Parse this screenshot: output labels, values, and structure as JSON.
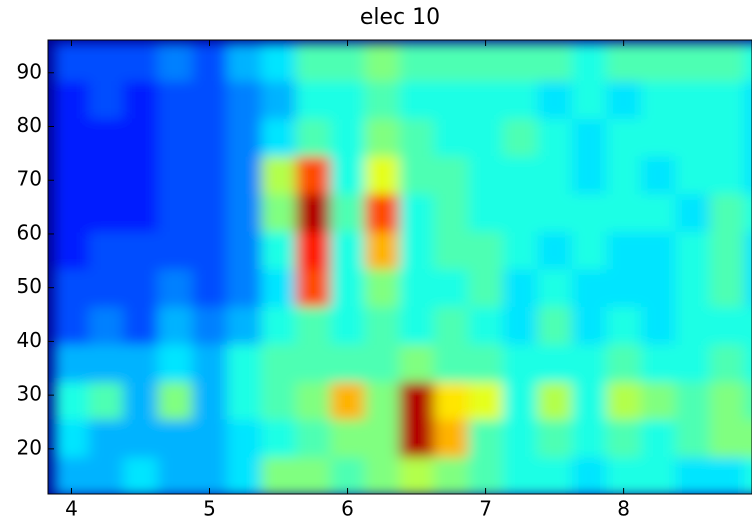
{
  "chart_data": {
    "type": "heatmap",
    "title": "elec 10",
    "x": [
      4.0,
      4.25,
      4.5,
      4.75,
      5.0,
      5.25,
      5.5,
      5.75,
      6.0,
      6.25,
      6.5,
      6.75,
      7.0,
      7.25,
      7.5,
      7.75,
      8.0,
      8.25,
      8.5,
      8.75,
      9.0
    ],
    "y": [
      15,
      22,
      29,
      36,
      43,
      50,
      57,
      64,
      71,
      78,
      85,
      92
    ],
    "values": [
      [
        0.3,
        0.3,
        0.35,
        0.3,
        0.3,
        0.35,
        0.5,
        0.5,
        0.45,
        0.5,
        0.55,
        0.5,
        0.45,
        0.4,
        0.4,
        0.35,
        0.4,
        0.4,
        0.35,
        0.35,
        0.4
      ],
      [
        0.35,
        0.3,
        0.3,
        0.3,
        0.3,
        0.35,
        0.4,
        0.45,
        0.5,
        0.5,
        0.95,
        0.7,
        0.45,
        0.4,
        0.45,
        0.4,
        0.45,
        0.4,
        0.45,
        0.5,
        0.5
      ],
      [
        0.4,
        0.45,
        0.3,
        0.5,
        0.3,
        0.4,
        0.45,
        0.5,
        0.7,
        0.5,
        0.95,
        0.65,
        0.6,
        0.4,
        0.55,
        0.4,
        0.55,
        0.5,
        0.45,
        0.5,
        0.45
      ],
      [
        0.3,
        0.3,
        0.3,
        0.35,
        0.3,
        0.4,
        0.45,
        0.45,
        0.45,
        0.45,
        0.5,
        0.45,
        0.45,
        0.4,
        0.4,
        0.4,
        0.45,
        0.4,
        0.4,
        0.45,
        0.4
      ],
      [
        0.2,
        0.25,
        0.2,
        0.3,
        0.25,
        0.3,
        0.4,
        0.45,
        0.4,
        0.45,
        0.4,
        0.45,
        0.4,
        0.35,
        0.45,
        0.35,
        0.4,
        0.35,
        0.4,
        0.4,
        0.4
      ],
      [
        0.2,
        0.2,
        0.2,
        0.25,
        0.2,
        0.25,
        0.35,
        0.8,
        0.4,
        0.5,
        0.4,
        0.4,
        0.45,
        0.35,
        0.4,
        0.35,
        0.35,
        0.35,
        0.4,
        0.45,
        0.35
      ],
      [
        0.15,
        0.2,
        0.2,
        0.2,
        0.2,
        0.25,
        0.4,
        0.85,
        0.4,
        0.7,
        0.4,
        0.45,
        0.45,
        0.4,
        0.35,
        0.4,
        0.35,
        0.35,
        0.4,
        0.45,
        0.35
      ],
      [
        0.15,
        0.15,
        0.15,
        0.2,
        0.2,
        0.25,
        0.5,
        0.95,
        0.45,
        0.8,
        0.4,
        0.45,
        0.4,
        0.4,
        0.4,
        0.4,
        0.4,
        0.4,
        0.35,
        0.45,
        0.4
      ],
      [
        0.15,
        0.15,
        0.15,
        0.2,
        0.2,
        0.25,
        0.55,
        0.8,
        0.4,
        0.6,
        0.45,
        0.45,
        0.4,
        0.4,
        0.4,
        0.35,
        0.4,
        0.35,
        0.4,
        0.4,
        0.35
      ],
      [
        0.15,
        0.15,
        0.15,
        0.2,
        0.2,
        0.25,
        0.35,
        0.45,
        0.4,
        0.5,
        0.45,
        0.4,
        0.4,
        0.45,
        0.4,
        0.35,
        0.4,
        0.4,
        0.4,
        0.4,
        0.35
      ],
      [
        0.15,
        0.2,
        0.15,
        0.2,
        0.2,
        0.25,
        0.3,
        0.4,
        0.4,
        0.45,
        0.4,
        0.4,
        0.4,
        0.4,
        0.35,
        0.4,
        0.35,
        0.4,
        0.4,
        0.4,
        0.35
      ],
      [
        0.2,
        0.2,
        0.2,
        0.25,
        0.2,
        0.3,
        0.35,
        0.45,
        0.45,
        0.5,
        0.45,
        0.45,
        0.45,
        0.45,
        0.45,
        0.4,
        0.45,
        0.45,
        0.45,
        0.45,
        0.4
      ]
    ],
    "zlim": [
      0,
      1
    ],
    "colormap": "jet",
    "xlim": [
      3.83,
      8.93
    ],
    "xticks": [
      4,
      5,
      6,
      7,
      8
    ],
    "ylim": [
      11.6,
      96.1
    ],
    "yticks": [
      20,
      30,
      40,
      50,
      60,
      70,
      80,
      90
    ]
  }
}
